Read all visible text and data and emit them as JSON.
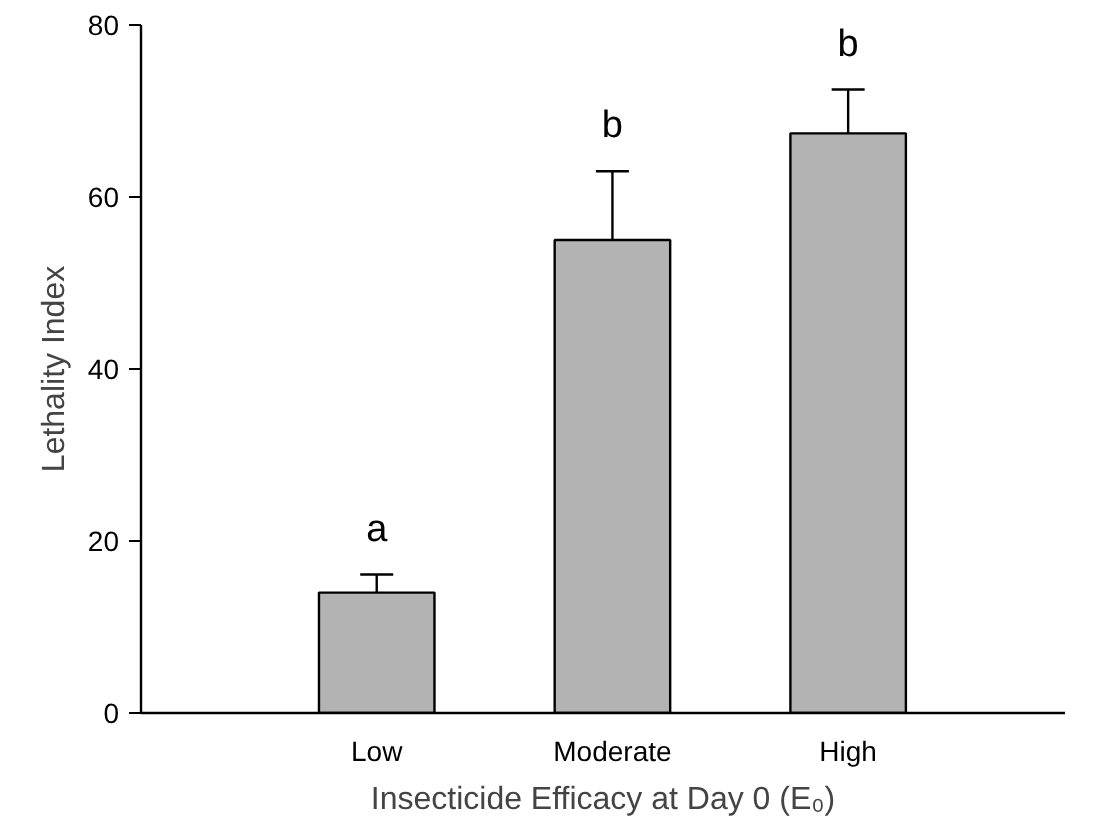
{
  "chart_data": {
    "type": "bar",
    "xlabel": "Insecticide Efficacy at Day 0 (E₀)",
    "ylabel": "Lethality Index",
    "categories": [
      "Low",
      "Moderate",
      "High"
    ],
    "values": [
      14,
      55,
      67.4
    ],
    "color": "#b3b3b3",
    "errors": [
      [
        14,
        16.1
      ],
      [
        55,
        63
      ],
      [
        67.4,
        72.5
      ]
    ],
    "ylim": [
      0,
      80
    ],
    "yticks": [
      0,
      20,
      40,
      60,
      80
    ],
    "grid": false,
    "annotations": [
      {
        "text": "a",
        "x": "Low",
        "y": 16.1
      },
      {
        "text": "b",
        "x": "Moderate",
        "y": 63
      },
      {
        "text": "b",
        "x": "High",
        "y": 72.5
      }
    ]
  }
}
